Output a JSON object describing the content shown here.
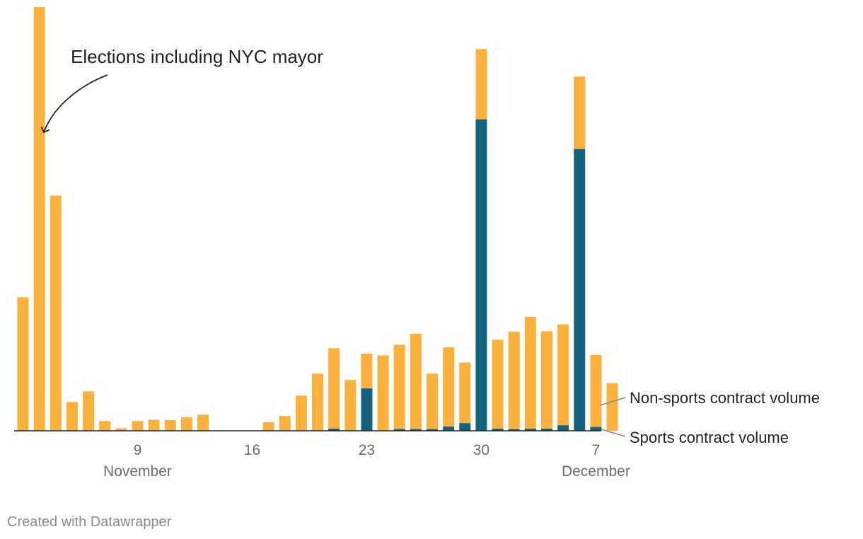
{
  "colors": {
    "non_sports": "#fcb13c",
    "sports": "#146380",
    "axis": "#222222",
    "muted": "#6b6b6b"
  },
  "credit": "Created with Datawrapper",
  "chart_data": {
    "type": "bar",
    "stacked": true,
    "title": "",
    "xlabel": "",
    "ylabel": "",
    "ylim": [
      0,
      100
    ],
    "grid": false,
    "categories": [
      "Nov 2",
      "Nov 3",
      "Nov 4",
      "Nov 5",
      "Nov 6",
      "Nov 7",
      "Nov 8",
      "Nov 9",
      "Nov 10",
      "Nov 11",
      "Nov 12",
      "Nov 13",
      "Nov 14",
      "Nov 15",
      "Nov 16",
      "Nov 17",
      "Nov 18",
      "Nov 19",
      "Nov 20",
      "Nov 21",
      "Nov 22",
      "Nov 23",
      "Nov 24",
      "Nov 25",
      "Nov 26",
      "Nov 27",
      "Nov 28",
      "Nov 29",
      "Nov 30",
      "Dec 1",
      "Dec 2",
      "Dec 3",
      "Dec 4",
      "Dec 5",
      "Dec 6",
      "Dec 7",
      "Dec 8"
    ],
    "series": [
      {
        "name": "Sports contract volume",
        "values": [
          0,
          0,
          0,
          0,
          0,
          0,
          0,
          0,
          0,
          0,
          0,
          0,
          0,
          0,
          0,
          0,
          0,
          0,
          0,
          0.5,
          0,
          10,
          0,
          0.4,
          0.4,
          0.4,
          1.0,
          1.8,
          73.5,
          0.5,
          0.4,
          0.5,
          0.5,
          1.3,
          66.5,
          0.9,
          0
        ]
      },
      {
        "name": "Non-sports contract volume",
        "values": [
          31.5,
          100,
          55.5,
          6.8,
          9.3,
          2.3,
          0.6,
          2.3,
          2.6,
          2.5,
          3.2,
          3.8,
          0,
          0,
          0,
          2,
          3.5,
          8.3,
          13.5,
          19,
          12,
          8.2,
          17.8,
          19.9,
          22.5,
          13.1,
          18.7,
          14.3,
          16.6,
          21.0,
          23.0,
          26.4,
          23.0,
          23.8,
          17.1,
          17.0,
          11.2
        ]
      }
    ],
    "x_ticks": [
      "9",
      "16",
      "23",
      "30",
      "7"
    ],
    "month_labels": [
      "November",
      "December"
    ],
    "annotation": "Elections including NYC mayor",
    "legend": {
      "non_sports": "Non-sports contract volume",
      "sports": "Sports contract volume",
      "placement": "right"
    }
  }
}
